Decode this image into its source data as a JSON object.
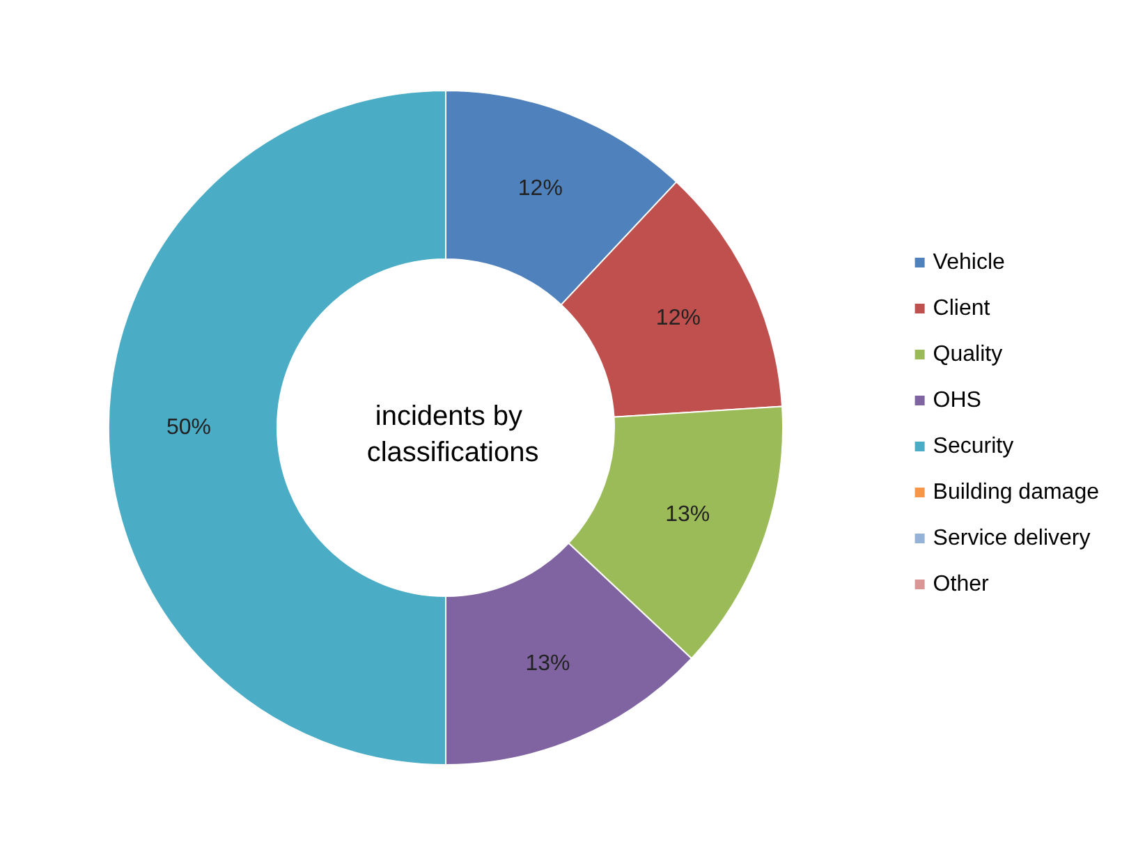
{
  "chart_data": {
    "type": "donut",
    "title": "incidents by classifications",
    "categories": [
      "Vehicle",
      "Client",
      "Quality",
      "OHS",
      "Security",
      "Building damage",
      "Service delivery",
      "Other"
    ],
    "values": [
      12,
      12,
      13,
      13,
      50,
      0,
      0,
      0
    ],
    "colors": [
      "#4f81bd",
      "#c0504d",
      "#9bbb59",
      "#8064a2",
      "#4bacc6",
      "#f79646",
      "#95b3d7",
      "#d99694"
    ],
    "value_labels": [
      "12%",
      "12%",
      "13%",
      "13%",
      "50%",
      null,
      null,
      null
    ],
    "legend": "right"
  }
}
